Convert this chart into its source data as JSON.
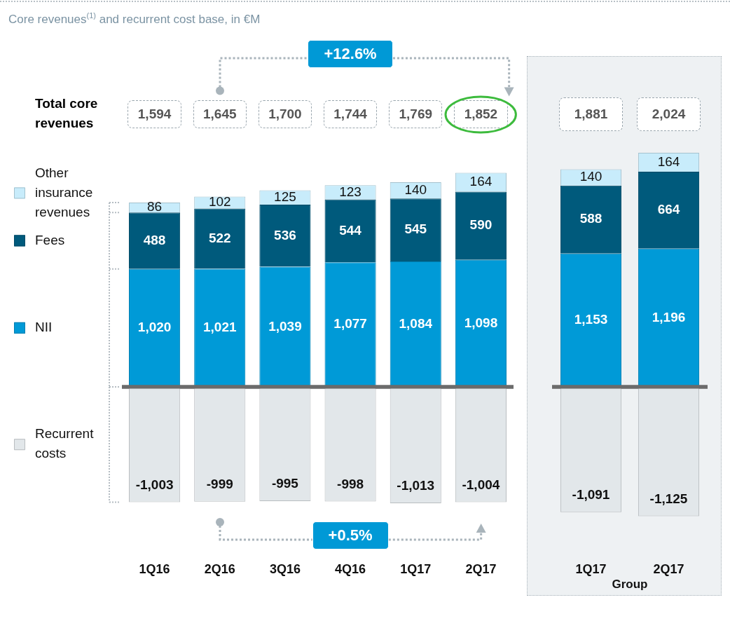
{
  "chart_data": [
    {
      "type": "bar",
      "title": "Core revenues$^{(1)}$ and recurrent cost base, in €M",
      "categories": [
        null,
        null,
        null,
        null,
        null,
        null
      ],
      "stacked": true,
      "legend": "left",
      "tick_labels": false,
      "series": [
        {
          "name": "NII",
          "color": "#009ad7",
          "values": [
            1020,
            1021,
            1039,
            1077,
            1084,
            1098
          ],
          "value_labels": [
            "1,020",
            "1,021",
            "1,039",
            "1,077",
            "1,084",
            "1,098"
          ]
        },
        {
          "name": "Fees",
          "color": "#005a7c",
          "values": [
            488,
            522,
            536,
            544,
            545,
            590
          ],
          "value_labels": [
            "488",
            "522",
            "536",
            "544",
            "545",
            "590"
          ]
        },
        {
          "name": "Other insurance revenues",
          "color": "#c8ecfb",
          "values": [
            86,
            102,
            125,
            123,
            140,
            164
          ],
          "value_labels": [
            "86",
            "102",
            "125",
            "123",
            "140",
            "164"
          ]
        }
      ],
      "annotations": [
        "1,594",
        "1,645",
        "1,700",
        "1,744",
        "1,769",
        "1,852",
        "Total core revenues",
        "+12.6%"
      ]
    },
    {
      "type": "bar",
      "categories": [
        null,
        null
      ],
      "stacked": true,
      "tick_labels": false,
      "series": [
        {
          "color": "#009ad7",
          "values": [
            1153,
            1196
          ],
          "value_labels": [
            "1,153",
            "1,196"
          ]
        },
        {
          "color": "#005a7c",
          "values": [
            588,
            664
          ],
          "value_labels": [
            "588",
            "664"
          ]
        },
        {
          "color": "#c8ecfb",
          "values": [
            140,
            164
          ],
          "value_labels": [
            "140",
            "164"
          ]
        }
      ],
      "annotations": [
        "1,881",
        "2,024"
      ]
    },
    {
      "type": "bar",
      "categories": [
        "1Q16",
        "2Q16",
        "3Q16",
        "4Q16",
        "1Q17",
        "2Q17"
      ],
      "legend": "left",
      "tick_labels": "x",
      "series": [
        {
          "name": "Recurrent costs",
          "color": "#e2e7ea",
          "values": [
            -1003,
            -999,
            -995,
            -998,
            -1013,
            -1004
          ],
          "value_labels": [
            "-1,003",
            "-999",
            "-995",
            "-998",
            "-1,013",
            "-1,004"
          ]
        }
      ],
      "annotations": [
        "+0.5%"
      ]
    },
    {
      "type": "bar",
      "categories": [
        "1Q17",
        "2Q17"
      ],
      "xlabel": "Group",
      "tick_labels": "x",
      "series": [
        {
          "color": "#e2e7ea",
          "values": [
            -1091,
            -1125
          ],
          "value_labels": [
            "-1,091",
            "-1,125"
          ]
        }
      ]
    }
  ]
}
